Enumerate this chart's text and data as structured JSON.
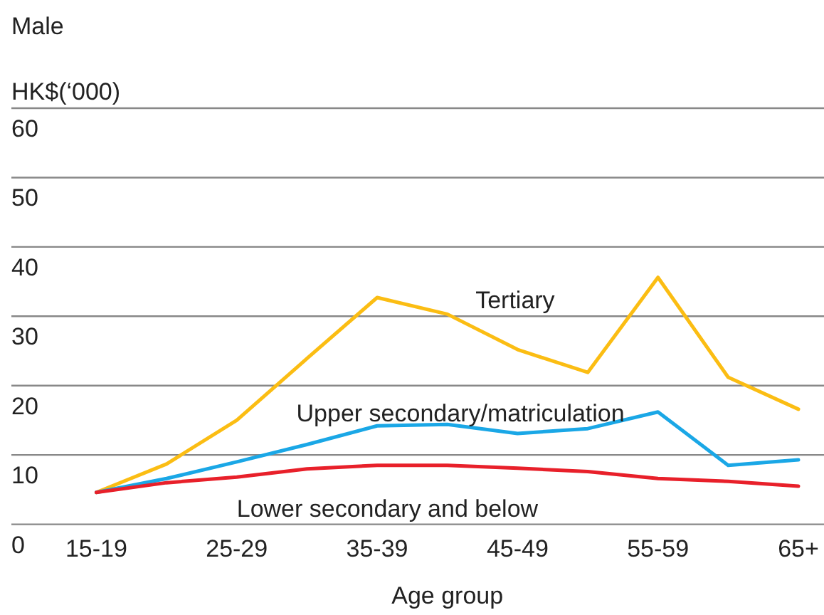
{
  "chart_data": {
    "type": "line",
    "title": "Male",
    "ylabel": "HK$(‘000)",
    "xlabel": "Age group",
    "categories": [
      "15-19",
      null,
      "25-29",
      null,
      "35-39",
      null,
      "45-49",
      null,
      "55-59",
      null,
      "65+"
    ],
    "ylim": [
      0,
      60
    ],
    "yticks": [
      0,
      10,
      20,
      30,
      40,
      50,
      60
    ],
    "grid": "y",
    "series": [
      {
        "name": "Tertiary",
        "color": "#fbbd13",
        "values": [
          4.6,
          8.7,
          15.0,
          23.9,
          32.7,
          30.3,
          25.2,
          21.9,
          35.6,
          21.2,
          16.6
        ]
      },
      {
        "name": "Upper secondary/matriculation",
        "color": "#1aa7e6",
        "values": [
          4.6,
          6.6,
          9.0,
          11.5,
          14.2,
          14.4,
          13.1,
          13.8,
          16.2,
          8.5,
          9.3
        ]
      },
      {
        "name": "Lower secondary and below",
        "color": "#e8202a",
        "values": [
          4.6,
          6.0,
          6.8,
          8.0,
          8.5,
          8.5,
          8.1,
          7.6,
          6.6,
          6.2,
          5.5
        ]
      }
    ]
  }
}
